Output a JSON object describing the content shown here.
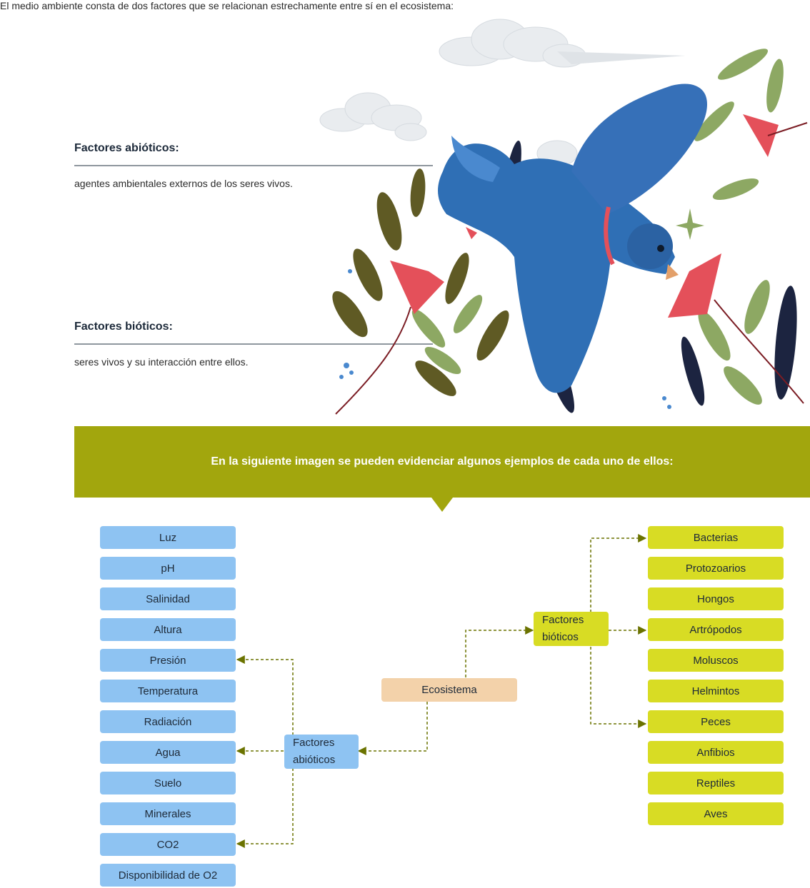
{
  "intro": "El medio ambiente consta de dos factores que se relacionan estrechamente entre sí en el ecosistema:",
  "abioticos": {
    "title": "Factores abióticos:",
    "desc": "agentes ambientales externos de los seres vivos."
  },
  "bioticos": {
    "title": "Factores bióticos:",
    "desc": "seres vivos y su interacción entre ellos."
  },
  "banner": "En la siguiente imagen se pueden evidenciar algunos ejemplos de cada uno de ellos:",
  "diagram": {
    "root": "Ecosistema",
    "abiotic_node": "Factores abióticos",
    "biotic_node": "Factores bióticos",
    "abiotic_items": [
      "Luz",
      "pH",
      "Salinidad",
      "Altura",
      "Presión",
      "Temperatura",
      "Radiación",
      "Agua",
      "Suelo",
      "Minerales",
      "CO2",
      "Disponibilidad de O2"
    ],
    "biotic_items": [
      "Bacterias",
      "Protozoarios",
      "Hongos",
      "Artrópodos",
      "Moluscos",
      "Helmintos",
      "Peces",
      "Anfibios",
      "Reptiles",
      "Aves"
    ]
  },
  "colors": {
    "banner": "#a2a60d",
    "abiotic": "#8ec3f2",
    "biotic": "#d8dc24",
    "root": "#f3d2aa",
    "connector": "#6b7300",
    "bird": "#2f6fb5",
    "flower": "#e4505a",
    "leaf_olive": "#5f5a24",
    "leaf_green": "#8da863",
    "leaf_navy": "#1c2440"
  }
}
